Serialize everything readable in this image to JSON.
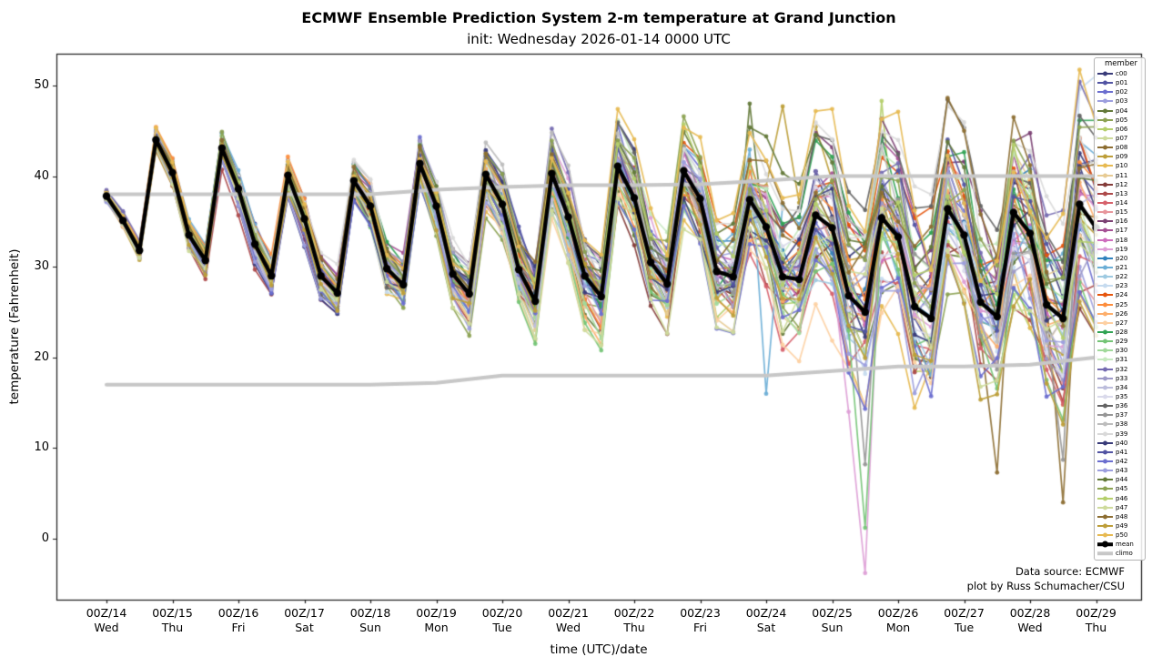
{
  "page": {
    "title": "ECMWF Ensemble Prediction System 2-m temperature at Grand Junction",
    "subtitle": "init: Wednesday 2026-01-14 0000 UTC"
  },
  "annotations": {
    "source_line1": "Data source: ECMWF",
    "source_line2": "plot by Russ Schumacher/CSU"
  },
  "chart_data": {
    "type": "line",
    "title": "ECMWF Ensemble Prediction System 2-m temperature at Grand Junction",
    "subtitle": "init: Wednesday 2026-01-14 0000 UTC",
    "xlabel": "time (UTC)/date",
    "ylabel": "temperature (Fahrenheit)",
    "legend_title": "member",
    "legend_position": "upper right",
    "grid": false,
    "ylim": [
      -6.7,
      53.5
    ],
    "yticks": [
      0,
      10,
      20,
      30,
      40,
      50
    ],
    "x_step_hours": 6,
    "x_points": 61,
    "x_tick_labels": [
      {
        "utc": "00Z/14",
        "day": "Wed"
      },
      {
        "utc": "00Z/15",
        "day": "Thu"
      },
      {
        "utc": "00Z/16",
        "day": "Fri"
      },
      {
        "utc": "00Z/17",
        "day": "Sat"
      },
      {
        "utc": "00Z/18",
        "day": "Sun"
      },
      {
        "utc": "00Z/19",
        "day": "Mon"
      },
      {
        "utc": "00Z/20",
        "day": "Tue"
      },
      {
        "utc": "00Z/21",
        "day": "Wed"
      },
      {
        "utc": "00Z/22",
        "day": "Thu"
      },
      {
        "utc": "00Z/23",
        "day": "Fri"
      },
      {
        "utc": "00Z/24",
        "day": "Sat"
      },
      {
        "utc": "00Z/25",
        "day": "Sun"
      },
      {
        "utc": "00Z/26",
        "day": "Mon"
      },
      {
        "utc": "00Z/27",
        "day": "Tue"
      },
      {
        "utc": "00Z/28",
        "day": "Wed"
      },
      {
        "utc": "00Z/29",
        "day": "Thu"
      }
    ],
    "mean": {
      "name": "mean",
      "color": "#000000",
      "values": [
        37.8,
        35.1,
        31.8,
        44.0,
        40.4,
        33.5,
        30.7,
        43.1,
        38.6,
        32.5,
        29.0,
        40.1,
        35.3,
        29.0,
        27.1,
        39.5,
        36.7,
        29.8,
        28.0,
        41.4,
        36.7,
        29.2,
        27.0,
        40.2,
        36.9,
        29.7,
        26.2,
        40.3,
        35.5,
        29.0,
        26.7,
        41.1,
        37.6,
        30.5,
        28.1,
        40.6,
        37.5,
        29.5,
        28.9,
        37.4,
        34.4,
        28.9,
        28.6,
        35.7,
        34.3,
        26.8,
        25.0,
        35.4,
        33.3,
        25.6,
        24.3,
        36.4,
        33.5,
        26.1,
        24.5,
        36.0,
        33.7,
        25.8,
        24.3,
        36.9,
        34.3
      ]
    },
    "climo": {
      "name": "climo",
      "color": "#c7c7c7",
      "max_daily": [
        38.0,
        38.0,
        38.0,
        38.0,
        38.0,
        38.5,
        38.8,
        39.0,
        39.0,
        39.1,
        39.5,
        40.0,
        40.0,
        40.0,
        40.0,
        40.0
      ],
      "min_daily": [
        17.0,
        17.0,
        17.0,
        17.0,
        17.0,
        17.2,
        18.0,
        18.0,
        18.0,
        18.0,
        18.0,
        18.5,
        19.0,
        19.0,
        19.2,
        20.0
      ]
    },
    "member_spread_sigma_daily": [
      0.7,
      1.3,
      1.8,
      2.2,
      2.6,
      3.0,
      3.6,
      4.2,
      4.8,
      5.5,
      6.5,
      8.5,
      9.5,
      9.0,
      10.0,
      10.0
    ],
    "member_overrides": {
      "p04": {
        "39": 48.0
      },
      "p06": {
        "47": 48.3
      },
      "p08": {
        "54": 7.3,
        "58": 4.0
      },
      "p09": {
        "41": 47.7
      },
      "p19": {
        "45": 14.0,
        "46": -3.8
      },
      "p21": {
        "40": 16.0
      },
      "p23": {
        "59": 49.6,
        "60": 51.1
      },
      "p29": {
        "46": 1.2
      },
      "p37": {
        "46": 8.2,
        "58": 8.7
      }
    },
    "members": [
      {
        "name": "c00",
        "color": "#393b79"
      },
      {
        "name": "p01",
        "color": "#5254a3"
      },
      {
        "name": "p02",
        "color": "#6b6ecf"
      },
      {
        "name": "p03",
        "color": "#9c9ede"
      },
      {
        "name": "p04",
        "color": "#637939"
      },
      {
        "name": "p05",
        "color": "#8ca252"
      },
      {
        "name": "p06",
        "color": "#b5cf6b"
      },
      {
        "name": "p07",
        "color": "#cedb9c"
      },
      {
        "name": "p08",
        "color": "#8c6d31"
      },
      {
        "name": "p09",
        "color": "#bd9e39"
      },
      {
        "name": "p10",
        "color": "#e7ba52"
      },
      {
        "name": "p11",
        "color": "#e7cb94"
      },
      {
        "name": "p12",
        "color": "#843c39"
      },
      {
        "name": "p13",
        "color": "#ad494a"
      },
      {
        "name": "p14",
        "color": "#d6616b"
      },
      {
        "name": "p15",
        "color": "#e7969c"
      },
      {
        "name": "p16",
        "color": "#7b4173"
      },
      {
        "name": "p17",
        "color": "#a55194"
      },
      {
        "name": "p18",
        "color": "#ce6dbd"
      },
      {
        "name": "p19",
        "color": "#de9ed6"
      },
      {
        "name": "p20",
        "color": "#3182bd"
      },
      {
        "name": "p21",
        "color": "#6baed6"
      },
      {
        "name": "p22",
        "color": "#9ecae1"
      },
      {
        "name": "p23",
        "color": "#c6dbef"
      },
      {
        "name": "p24",
        "color": "#e6550d"
      },
      {
        "name": "p25",
        "color": "#fd8d3c"
      },
      {
        "name": "p26",
        "color": "#fdae6b"
      },
      {
        "name": "p27",
        "color": "#fdd0a2"
      },
      {
        "name": "p28",
        "color": "#31a354"
      },
      {
        "name": "p29",
        "color": "#74c476"
      },
      {
        "name": "p30",
        "color": "#a1d99b"
      },
      {
        "name": "p31",
        "color": "#c7e9c0"
      },
      {
        "name": "p32",
        "color": "#756bb1"
      },
      {
        "name": "p33",
        "color": "#9e9ac8"
      },
      {
        "name": "p34",
        "color": "#bcbddc"
      },
      {
        "name": "p35",
        "color": "#dadaeb"
      },
      {
        "name": "p36",
        "color": "#636363"
      },
      {
        "name": "p37",
        "color": "#969696"
      },
      {
        "name": "p38",
        "color": "#bdbdbd"
      },
      {
        "name": "p39",
        "color": "#d9d9d9"
      },
      {
        "name": "p40",
        "color": "#393b79"
      },
      {
        "name": "p41",
        "color": "#5254a3"
      },
      {
        "name": "p42",
        "color": "#6b6ecf"
      },
      {
        "name": "p43",
        "color": "#9c9ede"
      },
      {
        "name": "p44",
        "color": "#637939"
      },
      {
        "name": "p45",
        "color": "#8ca252"
      },
      {
        "name": "p46",
        "color": "#b5cf6b"
      },
      {
        "name": "p47",
        "color": "#cedb9c"
      },
      {
        "name": "p48",
        "color": "#8c6d31"
      },
      {
        "name": "p49",
        "color": "#bd9e39"
      },
      {
        "name": "p50",
        "color": "#e7ba52"
      }
    ]
  }
}
